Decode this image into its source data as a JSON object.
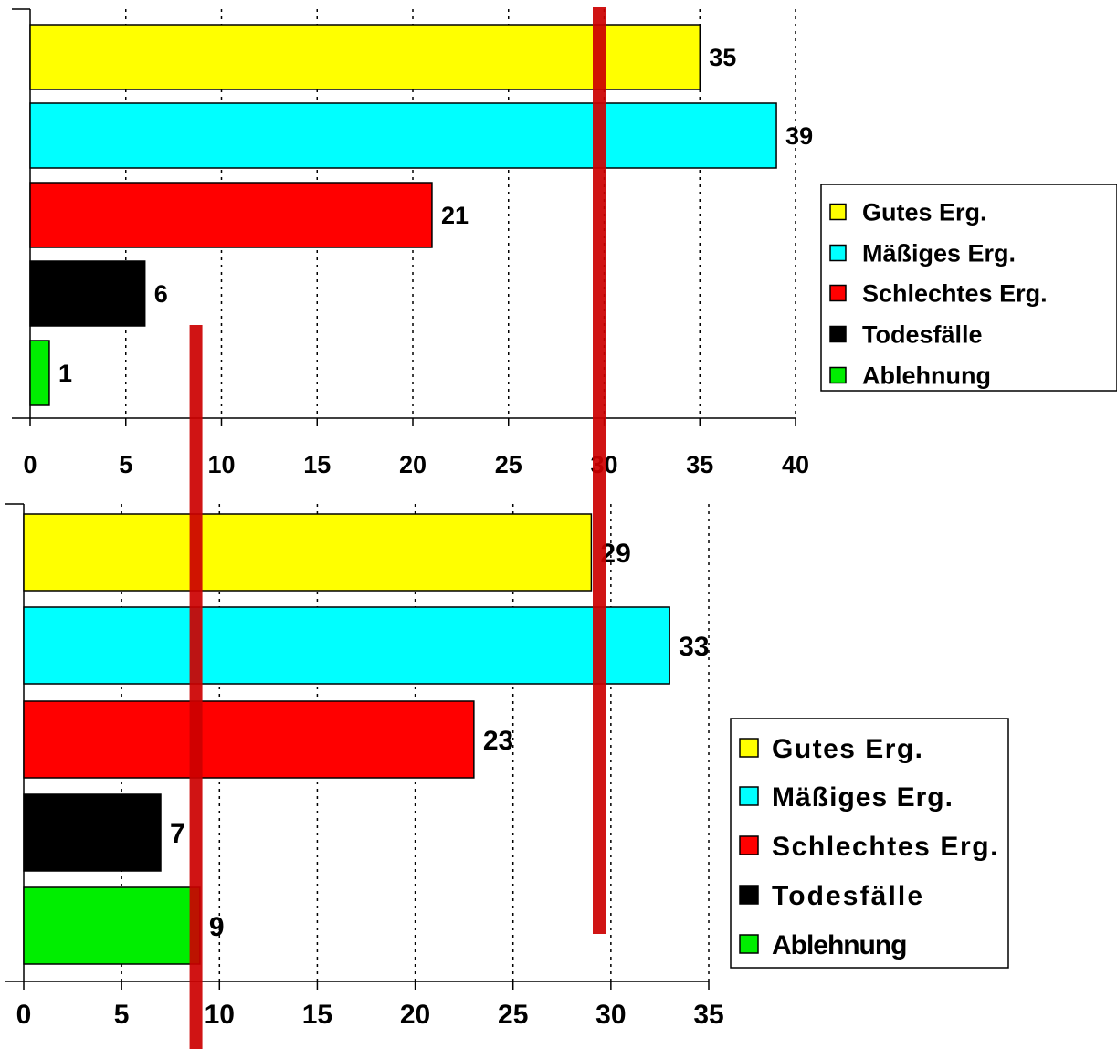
{
  "colors": {
    "gutes": "#ffff00",
    "maessiges": "#00ffff",
    "schlechtes": "#ff0000",
    "todesfaelle": "#000000",
    "ablehnung": "#00ee00",
    "overlay_line": "#cc0000",
    "grid": "#000000"
  },
  "chart_data": [
    {
      "type": "bar",
      "orientation": "horizontal",
      "categories": [
        "Gutes Erg.",
        "Mäßiges Erg.",
        "Schlechtes Erg.",
        "Todesfälle",
        "Ablehnung"
      ],
      "values": [
        35,
        39,
        21,
        6,
        1
      ],
      "data_labels": [
        "35",
        "39",
        "21",
        "6",
        "1"
      ],
      "xlim": [
        0,
        40
      ],
      "x_ticks": [
        0,
        5,
        10,
        15,
        20,
        25,
        30,
        35,
        40
      ],
      "x_tick_labels": [
        "0",
        "5",
        "10",
        "15",
        "20",
        "25",
        "30",
        "35",
        "40"
      ],
      "grid": "vertical dotted",
      "legend": {
        "placement": "right",
        "entries": [
          "Gutes Erg.",
          "Mäßiges Erg.",
          "Schlechtes Erg.",
          "Todesfälle",
          "Ablehnung"
        ]
      }
    },
    {
      "type": "bar",
      "orientation": "horizontal",
      "categories": [
        "Gutes Erg.",
        "Mäßiges Erg.",
        "Schlechtes Erg.",
        "Todesfälle",
        "Ablehnung"
      ],
      "values": [
        29,
        33,
        23,
        7,
        9
      ],
      "data_labels": [
        "29",
        "33",
        "23",
        "7",
        "9"
      ],
      "xlim": [
        0,
        35
      ],
      "x_ticks": [
        0,
        5,
        10,
        15,
        20,
        25,
        30,
        35
      ],
      "x_tick_labels": [
        "0",
        "5",
        "10",
        "15",
        "20",
        "25",
        "30",
        "35"
      ],
      "grid": "vertical dotted",
      "legend": {
        "placement": "right",
        "entries": [
          "Gutes Erg.",
          "Mäßiges Erg.",
          "Schlechtes Erg.",
          "Todesfälle",
          "Ablehnung"
        ]
      }
    }
  ],
  "overlay_marks": [
    {
      "name": "overlay-line-left",
      "x_value_chart2": 8.8
    },
    {
      "name": "overlay-line-right",
      "x_value_chart2": 29.4
    }
  ]
}
